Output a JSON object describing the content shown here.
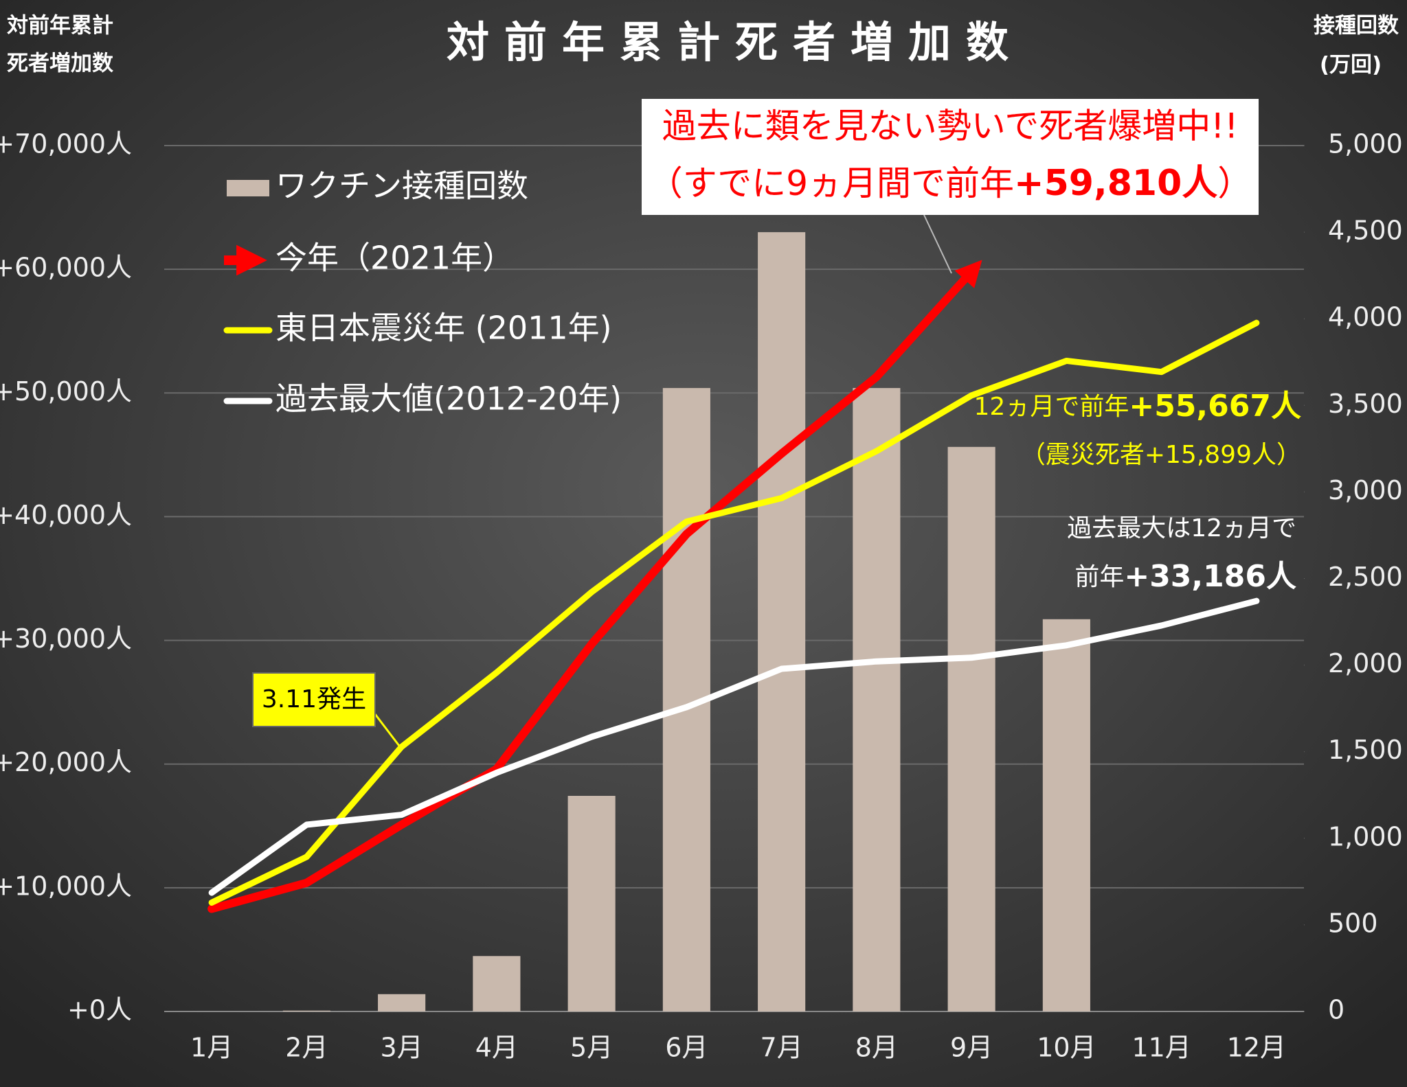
{
  "chart_data": {
    "type": "combo",
    "title": "対前年累計死者増加数",
    "y_title": [
      "対前年累計",
      "死者増加数"
    ],
    "y2_title": [
      "接種回数",
      "(万回)"
    ],
    "categories": [
      "1月",
      "2月",
      "3月",
      "4月",
      "5月",
      "6月",
      "7月",
      "8月",
      "9月",
      "10月",
      "11月",
      "12月"
    ],
    "series": [
      {
        "name": "ワクチン接種回数",
        "type": "bar",
        "axis": "y2",
        "color": "#c9b9ad",
        "values": [
          null,
          5,
          100,
          320,
          1245,
          3600,
          4500,
          3600,
          3260,
          2265,
          null,
          null
        ]
      },
      {
        "name": "今年（2021年）",
        "type": "line",
        "color": "#ff0000",
        "values": [
          8300,
          10400,
          15100,
          19600,
          29700,
          38600,
          45100,
          51300,
          59810,
          null,
          null,
          null
        ]
      },
      {
        "name": "東日本震災年 (2011年)",
        "type": "line",
        "color": "#ffff00",
        "values": [
          8800,
          12500,
          21400,
          27400,
          33900,
          39600,
          41500,
          45300,
          49800,
          52600,
          51700,
          55667
        ]
      },
      {
        "name": "過去最大値(2012-20年)",
        "type": "line",
        "color": "#ffffff",
        "values": [
          9600,
          15100,
          15900,
          19300,
          22200,
          24600,
          27700,
          28300,
          28600,
          29600,
          31200,
          33186
        ]
      }
    ],
    "ylim": [
      0,
      70000
    ],
    "yticks": [
      {
        "value": 0,
        "label": "+0人"
      },
      {
        "value": 10000,
        "label": "+10,000人"
      },
      {
        "value": 20000,
        "label": "+20,000人"
      },
      {
        "value": 30000,
        "label": "+30,000人"
      },
      {
        "value": 40000,
        "label": "+40,000人"
      },
      {
        "value": 50000,
        "label": "+50,000人"
      },
      {
        "value": 60000,
        "label": "+60,000人"
      },
      {
        "value": 70000,
        "label": "+70,000人"
      }
    ],
    "y2lim": [
      0,
      5000
    ],
    "y2ticks": [
      0,
      500,
      {
        "value": 1000,
        "label": "1,000"
      },
      {
        "value": 1500,
        "label": "1,500"
      },
      {
        "value": 2000,
        "label": "2,000"
      },
      {
        "value": 2500,
        "label": "2,500"
      },
      {
        "value": 3000,
        "label": "3,000"
      },
      {
        "value": 3500,
        "label": "3,500"
      },
      {
        "value": 4000,
        "label": "4,000"
      },
      {
        "value": 4500,
        "label": "4,500"
      },
      {
        "value": 5000,
        "label": "5,000"
      }
    ],
    "grid": true,
    "callout": {
      "line1": "過去に類を見ない勢いで死者爆増中!!",
      "line2_pre": "（すでに9ヵ月間で前年",
      "line2_bold": "+59,810人",
      "line2_post": "）"
    },
    "note_2011": {
      "line1_pre": "12ヵ月で前年",
      "line1_bold": "+55,667人",
      "line2": "（震災死者+15,899人）"
    },
    "note_max": {
      "line1": "過去最大は12ヵ月で",
      "line2_pre": "前年",
      "line2_bold": "+33,186人"
    },
    "note_311": "3.11発生"
  }
}
